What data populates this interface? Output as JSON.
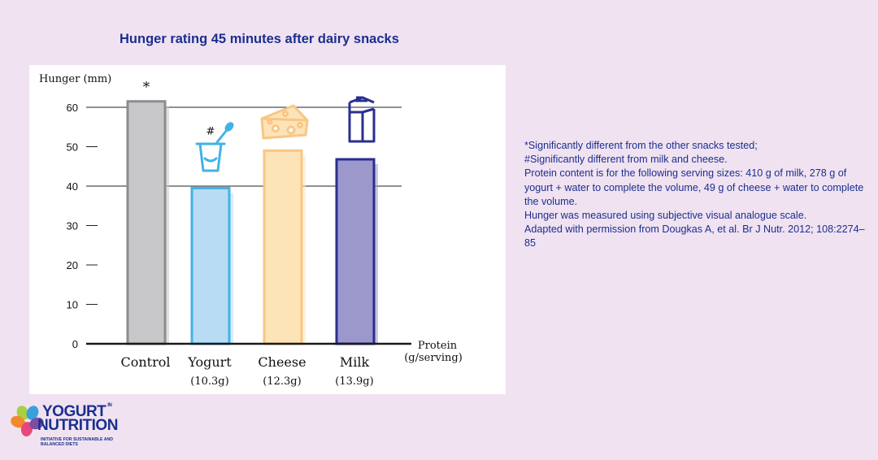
{
  "title": "Hunger rating 45 minutes after dairy snacks",
  "chart_data": {
    "type": "bar",
    "title": "Hunger rating 45 minutes after dairy snacks",
    "ylabel": "Hunger (mm)",
    "xlabel": "Protein\n(g/serving)",
    "xlabel_lines": [
      "Protein",
      "(g/serving)"
    ],
    "ylim": [
      0,
      60
    ],
    "yticks": [
      "0",
      "10",
      "20",
      "30",
      "40",
      "50",
      "60"
    ],
    "grid": "horizontal at 40 and 60",
    "categories": [
      "Control",
      "Yogurt",
      "Cheese",
      "Milk"
    ],
    "sublabels": [
      "",
      "(10.3g)",
      "(12.3g)",
      "(13.9g)"
    ],
    "values": [
      61.5,
      39.5,
      49,
      46.8
    ],
    "annotations": [
      "*",
      "#",
      "",
      ""
    ],
    "colors": {
      "fill": [
        "#c8c8cb",
        "#b8dcf4",
        "#fde3b8",
        "#9d98cb"
      ],
      "stroke": [
        "#8c8c8f",
        "#42b2e6",
        "#f8c684",
        "#2a2f8f"
      ],
      "axis": "#1a1a1a"
    },
    "icons": [
      "",
      "yogurt-cup-icon",
      "cheese-icon",
      "milk-carton-icon"
    ]
  },
  "notes": [
    "*Significantly different from the other snacks tested;",
    "#Significantly different from milk and cheese.",
    "Protein content is for the following serving sizes: 410 g of milk, 278 g of yogurt + water to complete the volume, 49 g of cheese + water to complete the volume.",
    "Hunger was measured using subjective visual analogue scale.",
    "Adapted with permission from Dougkas A, et al. Br J Nutr. 2012; 108:2274–85"
  ],
  "logo": {
    "line1": "YOGURT",
    "in": "IN",
    "line2": "NUTRITION",
    "tagline": "Initiative for sustainable and balanced diets"
  }
}
